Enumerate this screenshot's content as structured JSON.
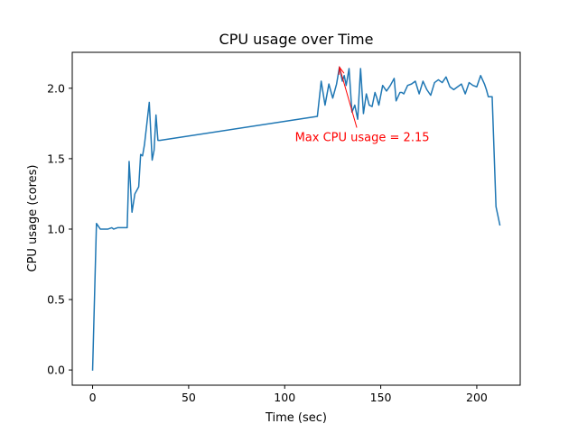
{
  "chart_data": {
    "type": "line",
    "title": "CPU usage over Time",
    "xlabel": "Time (sec)",
    "ylabel": "CPU usage (cores)",
    "xlim": [
      -10.6,
      222.6
    ],
    "ylim": [
      -0.108,
      2.255
    ],
    "xticks": [
      0,
      50,
      100,
      150,
      200
    ],
    "xtick_labels": [
      "0",
      "50",
      "100",
      "150",
      "200"
    ],
    "yticks": [
      0.0,
      0.5,
      1.0,
      1.5,
      2.0
    ],
    "ytick_labels": [
      "0.0",
      "0.5",
      "1.0",
      "1.5",
      "2.0"
    ],
    "grid": false,
    "colors": {
      "line": "#1f77b4",
      "annotation": "#ff0000",
      "axis": "#000000"
    },
    "series": [
      {
        "x": [
          0,
          2,
          4,
          6,
          8,
          10,
          11,
          13,
          15,
          17,
          18,
          19,
          20.5,
          22,
          24,
          25,
          26,
          27,
          28,
          29.5,
          31,
          32,
          33,
          34,
          35,
          117,
          119,
          121,
          123,
          125,
          127,
          128.5,
          130,
          131,
          132,
          133.5,
          135,
          136.5,
          138,
          139.5,
          141,
          142.5,
          144,
          145.5,
          147,
          148,
          149,
          151,
          153,
          155,
          157,
          158,
          160,
          161,
          162,
          164,
          166,
          168,
          170,
          172,
          174,
          176,
          178,
          180,
          182,
          184,
          186,
          188,
          190,
          192,
          194,
          196,
          198,
          200,
          202,
          204,
          205,
          206,
          208,
          210,
          212
        ],
        "y": [
          0.0,
          1.04,
          1.0,
          1.0,
          1.0,
          1.01,
          1.0,
          1.01,
          1.01,
          1.01,
          1.01,
          1.48,
          1.12,
          1.25,
          1.3,
          1.53,
          1.52,
          1.6,
          1.72,
          1.9,
          1.49,
          1.56,
          1.81,
          1.63,
          1.63,
          1.8,
          2.05,
          1.88,
          2.03,
          1.93,
          2.03,
          2.15,
          2.05,
          2.09,
          2.02,
          2.14,
          1.83,
          1.88,
          1.78,
          2.14,
          1.82,
          1.96,
          1.88,
          1.87,
          1.97,
          1.93,
          1.88,
          2.02,
          1.98,
          2.02,
          2.07,
          1.91,
          1.97,
          1.97,
          1.96,
          2.02,
          2.03,
          2.05,
          1.96,
          2.05,
          1.99,
          1.95,
          2.04,
          2.06,
          2.04,
          2.08,
          2.01,
          1.99,
          2.01,
          2.03,
          1.96,
          2.04,
          2.02,
          2.01,
          2.09,
          2.03,
          1.99,
          1.94,
          1.94,
          1.16,
          1.03
        ]
      }
    ],
    "annotation": {
      "text": "Max CPU usage = 2.15",
      "point_x": 128.5,
      "point_y": 2.15,
      "text_x": 138,
      "text_y": 1.65
    }
  }
}
